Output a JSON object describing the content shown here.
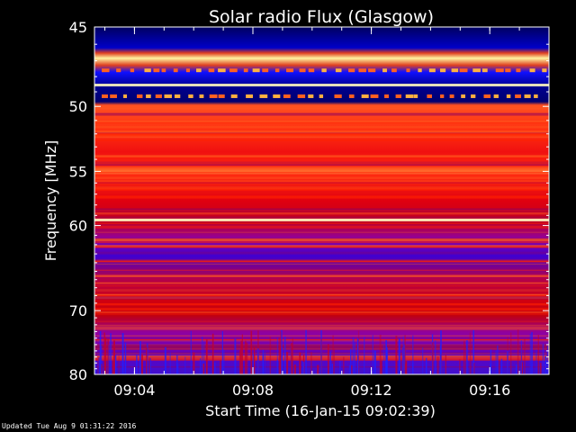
{
  "chart_data": {
    "type": "heatmap",
    "title": "Solar radio Flux (Glasgow)",
    "xlabel": "Start Time (16-Jan-15 09:02:39)",
    "ylabel": "Frequency [MHz]",
    "x_start": "09:02:39",
    "x_end": "09:18:00",
    "x_ticks": [
      "09:04",
      "09:08",
      "09:12",
      "09:16"
    ],
    "y_ticks": [
      45,
      50,
      55,
      60,
      70,
      80
    ],
    "ylim": [
      45,
      80
    ],
    "y_scale": "reciprocal",
    "colormap": [
      "#000044",
      "#0000ff",
      "#8000a0",
      "#ff0000",
      "#ffff80"
    ],
    "bands": [
      {
        "from": 45,
        "to": 47,
        "level": "low"
      },
      {
        "from": 47,
        "to": 50,
        "level": "mixed, intermittent bursts"
      },
      {
        "from": 48.4,
        "to": 48.7,
        "level": "bright continuous line"
      },
      {
        "from": 50,
        "to": 52,
        "level": "low"
      },
      {
        "from": 52,
        "to": 66,
        "level": "high"
      },
      {
        "from": 59.3,
        "to": 59.6,
        "level": "bright line"
      },
      {
        "from": 66,
        "to": 69,
        "level": "low to medium"
      },
      {
        "from": 69,
        "to": 76,
        "level": "high"
      },
      {
        "from": 76,
        "to": 80,
        "level": "low to medium"
      }
    ],
    "grid": false,
    "legend": "none"
  },
  "footer": {
    "updated": "Updated Tue Aug  9 01:31:22 2016"
  }
}
